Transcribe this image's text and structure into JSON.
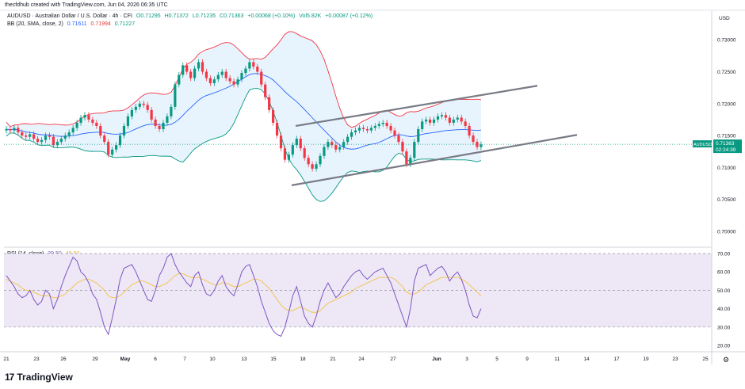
{
  "header": "thecfdhub created with TradingView.com, Jun 04, 2026 06:35 UTC",
  "legend_main": {
    "symbol": "AUDUSD · Australian Dollar / U.S. Dollar · 4h · CFI",
    "o": "O0.71295",
    "h": "H0.71372",
    "l": "L0.71235",
    "c": "C0.71363",
    "chg": "+0.00068 (+0.10%)",
    "vol": "Vol5.82K",
    "chg2": "+0.00087 (+0.12%)"
  },
  "legend_bb": {
    "label": "BB (20, SMA, close, 2)",
    "basis": "0.71611",
    "upper": "0.71994",
    "lower": "0.71227"
  },
  "legend_rsi": {
    "label": "RSI (14, close)",
    "rsi": "39.50",
    "ma": "46.82"
  },
  "price_axis": {
    "currency": "USD",
    "ticks": [
      "0.73000",
      "0.72500",
      "0.72000",
      "0.71500",
      "0.71000",
      "0.70500",
      "0.70000"
    ],
    "current_symbol": "AUDUSD",
    "current_price": "0.71363",
    "countdown": "02:24:39"
  },
  "rsi_axis": {
    "ticks": [
      "70.00",
      "60.00",
      "50.00",
      "40.00",
      "30.00",
      "20.00"
    ]
  },
  "x_axis": {
    "ticks": [
      "21",
      "23",
      "26",
      "29",
      "May",
      "6",
      "7",
      "10",
      "13",
      "15",
      "18",
      "21",
      "24",
      "27",
      "Jun",
      "3",
      "5",
      "9",
      "11",
      "14",
      "17",
      "19",
      "23",
      "25"
    ]
  },
  "footer": {
    "brand": "TradingView"
  },
  "colors": {
    "up": "#089981",
    "down": "#f23645",
    "bb_upper": "#f23645",
    "bb_lower": "#089981",
    "bb_basis": "#2962ff",
    "bb_fill": "#e3f2fd",
    "rsi": "#7e57c2",
    "rsi_ma": "#f5c343",
    "rsi_band": "#ede7f6",
    "channel": "#787b86"
  },
  "chart_data": [
    {
      "type": "candlestick",
      "title": "AUDUSD · Australian Dollar / U.S. Dollar · 4h · CFI",
      "ylim": [
        0.6975,
        0.7345
      ],
      "close": [
        0.716,
        0.7158,
        0.7162,
        0.7155,
        0.715,
        0.7148,
        0.7152,
        0.7145,
        0.714,
        0.7143,
        0.715,
        0.7148,
        0.7135,
        0.714,
        0.7145,
        0.715,
        0.7155,
        0.7162,
        0.717,
        0.7178,
        0.7182,
        0.7175,
        0.717,
        0.7165,
        0.715,
        0.714,
        0.712,
        0.7128,
        0.7135,
        0.715,
        0.7165,
        0.718,
        0.719,
        0.7195,
        0.72,
        0.7198,
        0.719,
        0.7175,
        0.7165,
        0.716,
        0.717,
        0.718,
        0.7195,
        0.723,
        0.7245,
        0.726,
        0.725,
        0.724,
        0.7255,
        0.7265,
        0.725,
        0.724,
        0.7232,
        0.7238,
        0.7245,
        0.725,
        0.724,
        0.7235,
        0.723,
        0.7238,
        0.7248,
        0.7255,
        0.7265,
        0.7258,
        0.725,
        0.723,
        0.721,
        0.719,
        0.717,
        0.715,
        0.713,
        0.7112,
        0.712,
        0.7135,
        0.7145,
        0.713,
        0.7115,
        0.7105,
        0.7098,
        0.7105,
        0.7118,
        0.7132,
        0.714,
        0.7135,
        0.7128,
        0.7132,
        0.714,
        0.7148,
        0.7155,
        0.7158,
        0.7162,
        0.716,
        0.7158,
        0.7162,
        0.7165,
        0.7168,
        0.717,
        0.7165,
        0.7158,
        0.715,
        0.714,
        0.7125,
        0.7105,
        0.7115,
        0.714,
        0.716,
        0.7172,
        0.7175,
        0.717,
        0.7175,
        0.718,
        0.7182,
        0.7178,
        0.717,
        0.7175,
        0.7178,
        0.7172,
        0.7165,
        0.715,
        0.714,
        0.7132,
        0.7136
      ],
      "price_ticks": [
        0.73,
        0.725,
        0.72,
        0.715,
        0.71,
        0.705,
        0.7
      ],
      "current_price": 0.71363,
      "channel_upper": [
        [
          0.7165,
          0.7228
        ]
      ],
      "channel_lower": [
        [
          0.7072,
          0.7151
        ]
      ]
    },
    {
      "type": "line",
      "title": "RSI (14, close)",
      "ylim": [
        17,
        73
      ],
      "levels": [
        70,
        50,
        30
      ],
      "rsi": [
        58,
        55,
        52,
        48,
        46,
        47,
        50,
        45,
        42,
        44,
        50,
        48,
        40,
        45,
        52,
        58,
        63,
        68,
        66,
        60,
        58,
        54,
        48,
        45,
        38,
        30,
        26,
        35,
        45,
        56,
        62,
        63,
        64,
        60,
        55,
        50,
        45,
        44,
        50,
        58,
        62,
        68,
        70,
        64,
        60,
        57,
        54,
        52,
        58,
        60,
        53,
        48,
        47,
        50,
        55,
        58,
        52,
        49,
        47,
        53,
        60,
        63,
        64,
        58,
        52,
        44,
        38,
        32,
        28,
        26,
        25,
        30,
        38,
        47,
        52,
        44,
        36,
        32,
        30,
        36,
        44,
        50,
        54,
        50,
        46,
        48,
        52,
        55,
        58,
        60,
        61,
        58,
        56,
        58,
        60,
        61,
        62,
        58,
        54,
        48,
        42,
        36,
        30,
        40,
        55,
        62,
        63,
        64,
        58,
        60,
        62,
        63,
        60,
        55,
        58,
        60,
        56,
        50,
        42,
        36,
        35,
        40
      ],
      "rsi_ma": [
        56,
        55,
        54,
        53,
        51,
        50,
        50,
        49,
        48,
        47,
        47,
        47,
        46,
        46,
        47,
        48,
        50,
        52,
        54,
        55,
        56,
        56,
        55,
        54,
        52,
        50,
        47,
        46,
        46,
        47,
        49,
        51,
        53,
        54,
        55,
        55,
        54,
        53,
        52,
        52,
        53,
        54,
        56,
        58,
        59,
        59,
        58,
        57,
        57,
        57,
        56,
        55,
        54,
        53,
        53,
        54,
        54,
        53,
        52,
        52,
        53,
        54,
        55,
        56,
        56,
        55,
        53,
        51,
        48,
        45,
        42,
        40,
        39,
        39,
        40,
        41,
        40,
        39,
        38,
        38,
        39,
        41,
        43,
        44,
        45,
        46,
        47,
        48,
        49,
        51,
        52,
        53,
        54,
        55,
        56,
        57,
        57,
        57,
        57,
        56,
        54,
        52,
        49,
        48,
        48,
        49,
        51,
        53,
        54,
        55,
        56,
        57,
        57,
        57,
        57,
        57,
        56,
        55,
        53,
        51,
        49,
        47
      ]
    }
  ]
}
